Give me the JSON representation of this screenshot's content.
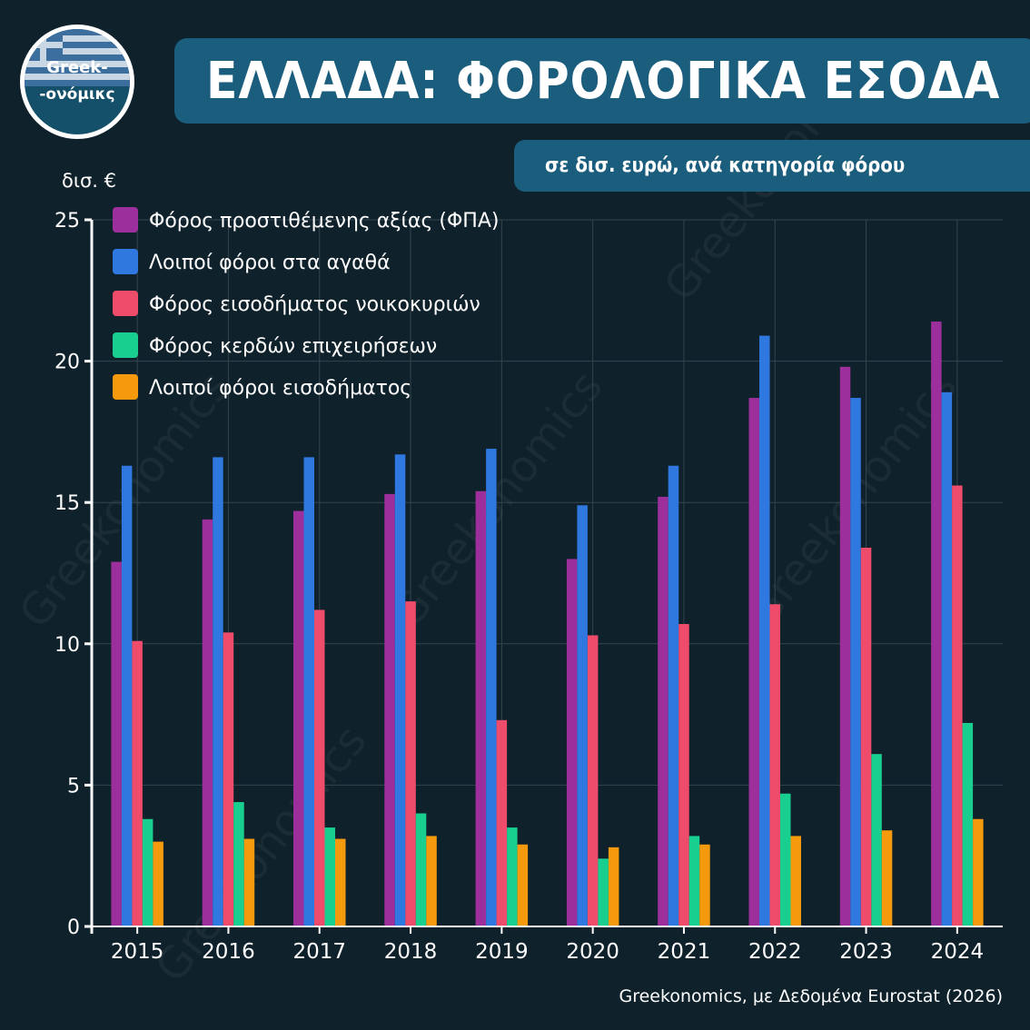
{
  "logo": {
    "line1": "Greek-",
    "line2": "-ονόμικς"
  },
  "header": {
    "title": "ΕΛΛΑΔΑ: ΦΟΡΟΛΟΓΙΚΑ ΕΣΟΔΑ",
    "subtitle": "σε δισ. ευρώ, ανά κατηγορία φόρου"
  },
  "source": "Greekonomics, με Δεδομένα Eurostat (2026)",
  "watermark_text": "Greekonomics",
  "colors": {
    "background": "#0f212b",
    "banner": "#1b5d7c",
    "grid": "#33454f",
    "axis": "#ffffff"
  },
  "chart_data": {
    "type": "bar",
    "ylabel": "δισ. €",
    "ylim": [
      0,
      25
    ],
    "yticks": [
      0,
      5,
      10,
      15,
      20,
      25
    ],
    "grid": true,
    "legend_position": "top-left",
    "categories": [
      "2015",
      "2016",
      "2017",
      "2018",
      "2019",
      "2020",
      "2021",
      "2022",
      "2023",
      "2024"
    ],
    "series": [
      {
        "name": "Φόρος προστιθέμενης αξίας (ΦΠΑ)",
        "color": "#9c2f9c",
        "values": [
          12.9,
          14.4,
          14.7,
          15.3,
          15.4,
          13.0,
          15.2,
          18.7,
          19.8,
          21.4
        ]
      },
      {
        "name": "Λοιποί φόροι στα αγαθά",
        "color": "#2f78e0",
        "values": [
          16.3,
          16.6,
          16.6,
          16.7,
          16.9,
          14.9,
          16.3,
          20.9,
          18.7,
          18.9
        ]
      },
      {
        "name": "Φόρος εισοδήματος νοικοκυριών",
        "color": "#ef4b6a",
        "values": [
          10.1,
          10.4,
          11.2,
          11.5,
          7.3,
          10.3,
          10.7,
          11.4,
          13.4,
          15.6
        ]
      },
      {
        "name": "Φόρος κερδών επιχειρήσεων",
        "color": "#19cf8f",
        "values": [
          3.8,
          4.4,
          3.5,
          4.0,
          3.5,
          2.4,
          3.2,
          4.7,
          6.1,
          7.2
        ]
      },
      {
        "name": "Λοιποί φόροι εισοδήματος",
        "color": "#f59a0c",
        "values": [
          3.0,
          3.1,
          3.1,
          3.2,
          2.9,
          2.8,
          2.9,
          3.2,
          3.4,
          3.8
        ]
      }
    ]
  }
}
